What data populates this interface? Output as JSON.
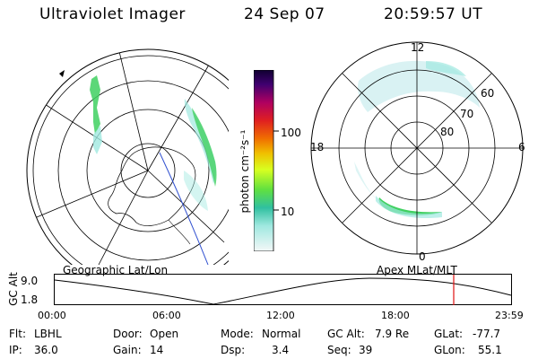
{
  "header": {
    "instrument": "Ultraviolet Imager",
    "date": "24 Sep 07",
    "time": "20:59:57 UT"
  },
  "colorbar": {
    "unit_label": "photon cm⁻²s⁻¹",
    "ticks": [
      "100",
      "10"
    ]
  },
  "polar_plot": {
    "top_label": "12",
    "bottom_label": "0",
    "left_label": "18",
    "right_label": "6",
    "lat_labels": [
      "60",
      "70",
      "80"
    ]
  },
  "alt_panel": {
    "left_title": "Geographic Lat/Lon",
    "right_title": "Apex MLat/MLT",
    "axis_label": "GC Alt",
    "y_top": "9.0",
    "y_bottom": "1.8",
    "x_ticks": [
      "00:00",
      "06:00",
      "12:00",
      "18:00",
      "23:59"
    ]
  },
  "status": {
    "flt_label": "Flt:",
    "flt_value": "LBHL",
    "ip_label": "IP:",
    "ip_value": "36.0",
    "door_label": "Door:",
    "door_value": "Open",
    "gain_label": "Gain:",
    "gain_value": "14",
    "mode_label": "Mode:",
    "mode_value": "Normal",
    "dsp_label": "Dsp:",
    "dsp_value": "3.4",
    "gcalt_label": "GC Alt:",
    "gcalt_value": "7.9 Re",
    "seq_label": "Seq:",
    "seq_value": "39",
    "glat_label": "GLat:",
    "glat_value": "-77.7",
    "glon_label": "GLon:",
    "glon_value": "55.1"
  },
  "colors": {
    "marker": "#e01010",
    "aurora_green": "#40d060",
    "aurora_cyan": "#a0e8e0"
  }
}
